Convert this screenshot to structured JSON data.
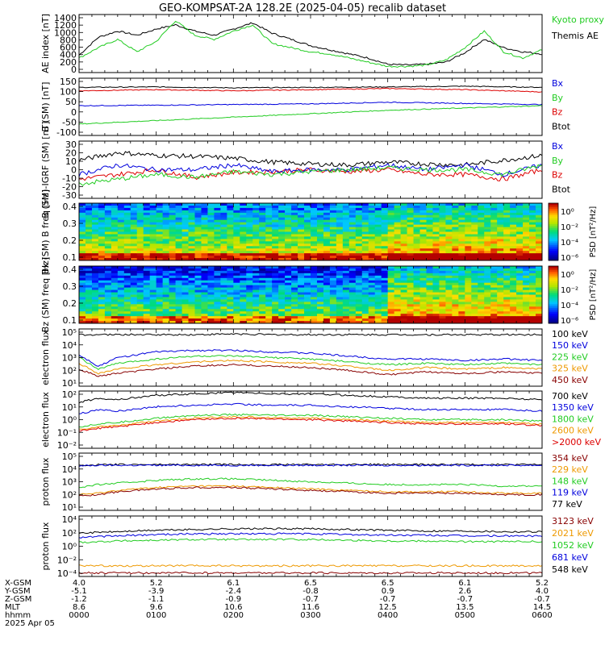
{
  "title": "GEO-KOMPSAT-2A 128.2E (2025-04-05) recalib dataset",
  "colors": {
    "black": "#000000",
    "blue": "#0000dd",
    "green": "#22cc22",
    "red": "#dd0000",
    "orange": "#ee9900",
    "darkred": "#880000",
    "bright_green": "#00ee00"
  },
  "chart_data": [
    {
      "type": "line",
      "id": "ae",
      "ylabel": "AE index [nT]",
      "yticks": [
        "1400",
        "1200",
        "1000",
        "800",
        "600",
        "400",
        "200",
        "0"
      ],
      "ylim": [
        0,
        1400
      ],
      "legend": [
        {
          "name": "Kyoto proxy AE",
          "color": "#22cc22"
        },
        {
          "name": "Themis AE",
          "color": "#000000"
        }
      ],
      "x": [
        0,
        15,
        30,
        45,
        60,
        75,
        90,
        105,
        120,
        135,
        150,
        165,
        180,
        195,
        210,
        225,
        240,
        255,
        270,
        285,
        300,
        315,
        330,
        345,
        360
      ],
      "series": [
        {
          "name": "Themis AE",
          "color": "#000000",
          "values": [
            420,
            850,
            1000,
            900,
            1050,
            1150,
            1000,
            900,
            1050,
            1200,
            950,
            800,
            650,
            550,
            450,
            350,
            200,
            180,
            200,
            250,
            480,
            800,
            600,
            500,
            450
          ]
        },
        {
          "name": "Kyoto proxy AE",
          "color": "#22cc22",
          "values": [
            350,
            600,
            800,
            500,
            750,
            1250,
            900,
            800,
            1000,
            1150,
            700,
            600,
            500,
            450,
            350,
            250,
            150,
            150,
            180,
            300,
            600,
            1000,
            500,
            350,
            550
          ]
        }
      ]
    },
    {
      "type": "line",
      "id": "b",
      "ylabel": "B (SM) [nT]",
      "yticks": [
        "150",
        "100",
        "50",
        "0",
        "-50",
        "-100"
      ],
      "ylim": [
        -100,
        150
      ],
      "legend": [
        {
          "name": "Bx",
          "color": "#0000dd"
        },
        {
          "name": "By",
          "color": "#22cc22"
        },
        {
          "name": "Bz",
          "color": "#dd0000"
        },
        {
          "name": "Btot",
          "color": "#000000"
        }
      ],
      "x": [
        0,
        60,
        120,
        180,
        240,
        300,
        360
      ],
      "series": [
        {
          "name": "Btot",
          "color": "#000000",
          "values": [
            110,
            112,
            108,
            110,
            112,
            115,
            110
          ]
        },
        {
          "name": "Bz",
          "color": "#dd0000",
          "values": [
            95,
            100,
            95,
            100,
            105,
            100,
            90
          ]
        },
        {
          "name": "Bx",
          "color": "#0000dd",
          "values": [
            30,
            32,
            35,
            38,
            45,
            40,
            35
          ]
        },
        {
          "name": "By",
          "color": "#22cc22",
          "values": [
            -50,
            -35,
            -20,
            -5,
            10,
            20,
            30
          ]
        }
      ]
    },
    {
      "type": "line",
      "id": "db",
      "ylabel": "B (SM)-IGRF (SM) [nT]",
      "yticks": [
        "30",
        "20",
        "10",
        "0",
        "-10",
        "-20",
        "-30"
      ],
      "ylim": [
        -30,
        30
      ],
      "legend": [
        {
          "name": "Bx",
          "color": "#0000dd"
        },
        {
          "name": "By",
          "color": "#22cc22"
        },
        {
          "name": "Bz",
          "color": "#dd0000"
        },
        {
          "name": "Btot",
          "color": "#000000"
        }
      ],
      "x": [
        0,
        30,
        60,
        90,
        120,
        150,
        180,
        210,
        240,
        270,
        300,
        330,
        360
      ],
      "series": [
        {
          "name": "Btot",
          "color": "#000000",
          "values": [
            10,
            18,
            15,
            14,
            12,
            8,
            6,
            5,
            8,
            6,
            5,
            10,
            15
          ]
        },
        {
          "name": "Bz",
          "color": "#dd0000",
          "values": [
            -10,
            -5,
            0,
            -8,
            -3,
            -2,
            0,
            -2,
            0,
            -5,
            -5,
            -10,
            0
          ]
        },
        {
          "name": "Bx",
          "color": "#0000dd",
          "values": [
            -5,
            5,
            0,
            0,
            5,
            -2,
            0,
            0,
            5,
            0,
            5,
            -5,
            5
          ]
        },
        {
          "name": "By",
          "color": "#22cc22",
          "values": [
            -15,
            -10,
            -5,
            -8,
            -2,
            -5,
            -2,
            0,
            2,
            0,
            0,
            -5,
            5
          ]
        }
      ]
    },
    {
      "type": "heatmap",
      "id": "bx_spec",
      "ylabel": "Bx (SM) B freq [Hz]",
      "yticks": [
        "0.4",
        "0.3",
        "0.2",
        "0.1"
      ],
      "ylim": [
        0.05,
        0.5
      ],
      "colorbar_label": "PSD [nT²/Hz]",
      "colorbar_ticks": [
        "10⁰",
        "10⁻²",
        "10⁻⁴",
        "10⁻⁶"
      ]
    },
    {
      "type": "heatmap",
      "id": "bz_spec",
      "ylabel": "Bz (SM) freq [Hz]",
      "yticks": [
        "0.4",
        "0.3",
        "0.2",
        "0.1"
      ],
      "ylim": [
        0.05,
        0.5
      ],
      "colorbar_label": "PSD [nT²/Hz]",
      "colorbar_ticks": [
        "10⁰",
        "10⁻²",
        "10⁻⁴",
        "10⁻⁶"
      ]
    },
    {
      "type": "line",
      "id": "eflux_low",
      "log": true,
      "ylabel": "electron flux",
      "yticks": [
        "10⁵",
        "10⁴",
        "10³",
        "10²",
        "10¹"
      ],
      "ylim_log": [
        1,
        5
      ],
      "legend": [
        {
          "name": "100 keV",
          "color": "#000000"
        },
        {
          "name": "150 keV",
          "color": "#0000dd"
        },
        {
          "name": "225 keV",
          "color": "#22cc22"
        },
        {
          "name": "325 keV",
          "color": "#ee9900"
        },
        {
          "name": "450 keV",
          "color": "#880000"
        }
      ],
      "x": [
        0,
        15,
        30,
        60,
        90,
        120,
        150,
        180,
        210,
        240,
        270,
        300,
        330,
        360
      ],
      "series": [
        {
          "values": [
            4.6,
            4.6,
            4.6,
            4.6,
            4.6,
            4.65,
            4.6,
            4.6,
            4.6,
            4.6,
            4.6,
            4.6,
            4.6,
            4.6
          ],
          "color": "#000000"
        },
        {
          "values": [
            3.2,
            2.4,
            3.0,
            3.4,
            3.5,
            3.5,
            3.4,
            3.3,
            3.1,
            2.9,
            2.9,
            2.8,
            2.9,
            2.8
          ],
          "color": "#0000dd"
        },
        {
          "values": [
            3.0,
            2.2,
            2.6,
            2.9,
            3.1,
            3.1,
            3.0,
            2.9,
            2.7,
            2.5,
            2.6,
            2.5,
            2.6,
            2.5
          ],
          "color": "#22cc22"
        },
        {
          "values": [
            2.6,
            1.9,
            2.2,
            2.5,
            2.7,
            2.8,
            2.7,
            2.6,
            2.4,
            2.1,
            2.3,
            2.2,
            2.3,
            2.2
          ],
          "color": "#ee9900"
        },
        {
          "values": [
            2.2,
            1.7,
            1.9,
            2.2,
            2.4,
            2.5,
            2.4,
            2.3,
            2.1,
            1.8,
            2.0,
            1.9,
            2.0,
            1.9
          ],
          "color": "#880000"
        }
      ]
    },
    {
      "type": "line",
      "id": "eflux_high",
      "log": true,
      "ylabel": "electron flux",
      "yticks": [
        "10²",
        "10¹",
        "10⁰",
        "10⁻¹",
        "10⁻²"
      ],
      "ylim_log": [
        -2,
        2
      ],
      "legend": [
        {
          "name": "700 keV",
          "color": "#000000"
        },
        {
          "name": "1350 keV",
          "color": "#0000dd"
        },
        {
          "name": "1800 keV",
          "color": "#22cc22"
        },
        {
          "name": "2600 keV",
          "color": "#ee9900"
        },
        {
          "name": ">2000 keV",
          "color": "#dd0000"
        }
      ],
      "x": [
        0,
        15,
        30,
        60,
        90,
        120,
        150,
        180,
        210,
        240,
        270,
        300,
        330,
        360
      ],
      "series": [
        {
          "values": [
            1.2,
            1.5,
            1.4,
            1.7,
            1.8,
            1.9,
            1.8,
            1.8,
            1.7,
            1.6,
            1.5,
            1.5,
            1.5,
            1.4
          ],
          "color": "#000000"
        },
        {
          "values": [
            0.4,
            0.7,
            0.6,
            0.9,
            1.0,
            1.1,
            1.0,
            1.0,
            0.9,
            0.8,
            0.7,
            0.7,
            0.7,
            0.6
          ],
          "color": "#0000dd"
        },
        {
          "values": [
            -0.5,
            -0.3,
            -0.2,
            0.1,
            0.3,
            0.35,
            0.3,
            0.3,
            0.2,
            0.1,
            0.0,
            0.0,
            0.0,
            -0.1
          ],
          "color": "#22cc22"
        },
        {
          "values": [
            -0.7,
            -0.5,
            -0.4,
            -0.1,
            0.1,
            0.2,
            0.15,
            0.1,
            0.0,
            -0.1,
            -0.2,
            -0.2,
            -0.2,
            -0.3
          ],
          "color": "#ee9900"
        },
        {
          "values": [
            -0.8,
            -0.6,
            -0.5,
            -0.2,
            0.0,
            0.1,
            0.05,
            0.0,
            -0.1,
            -0.2,
            -0.3,
            -0.3,
            -0.3,
            -0.4
          ],
          "color": "#dd0000"
        }
      ]
    },
    {
      "type": "line",
      "id": "pflux_low",
      "log": true,
      "ylabel": "proton flux",
      "yticks": [
        "10⁵",
        "10⁴",
        "10³",
        "10²",
        "10¹"
      ],
      "ylim_log": [
        1,
        5
      ],
      "legend": [
        {
          "name": "354 keV",
          "color": "#880000"
        },
        {
          "name": "229 keV",
          "color": "#ee9900"
        },
        {
          "name": "148 keV",
          "color": "#22cc22"
        },
        {
          "name": "119 keV",
          "color": "#0000dd"
        },
        {
          "name": "77 keV",
          "color": "#000000"
        }
      ],
      "x": [
        0,
        15,
        30,
        60,
        90,
        120,
        150,
        180,
        210,
        240,
        270,
        300,
        330,
        360
      ],
      "series": [
        {
          "values": [
            4.15,
            4.18,
            4.2,
            4.2,
            4.2,
            4.2,
            4.2,
            4.2,
            4.2,
            4.2,
            4.2,
            4.2,
            4.2,
            4.2
          ],
          "color": "#000000"
        },
        {
          "values": [
            4.1,
            4.15,
            4.15,
            4.15,
            4.15,
            4.15,
            4.15,
            4.15,
            4.15,
            4.15,
            4.15,
            4.15,
            4.15,
            4.15
          ],
          "color": "#0000dd"
        },
        {
          "values": [
            2.6,
            2.8,
            2.9,
            3.1,
            3.2,
            3.2,
            3.1,
            3.0,
            2.9,
            2.8,
            2.8,
            2.8,
            2.7,
            2.7
          ],
          "color": "#22cc22"
        },
        {
          "values": [
            2.1,
            2.2,
            2.4,
            2.6,
            2.7,
            2.7,
            2.6,
            2.5,
            2.4,
            2.3,
            2.3,
            2.3,
            2.2,
            2.2
          ],
          "color": "#ee9900"
        },
        {
          "values": [
            2.0,
            2.1,
            2.3,
            2.5,
            2.6,
            2.6,
            2.5,
            2.4,
            2.3,
            2.2,
            2.2,
            2.2,
            2.1,
            2.1
          ],
          "color": "#880000"
        }
      ]
    },
    {
      "type": "line",
      "id": "pflux_high",
      "log": true,
      "ylabel": "proton flux",
      "yticks": [
        "10⁴",
        "10²",
        "10⁰",
        "10⁻²",
        "10⁻⁴"
      ],
      "ylim_log": [
        -4.5,
        4
      ],
      "legend": [
        {
          "name": "3123 keV",
          "color": "#880000"
        },
        {
          "name": "2021 keV",
          "color": "#ee9900"
        },
        {
          "name": "1052 keV",
          "color": "#22cc22"
        },
        {
          "name": "681 keV",
          "color": "#0000dd"
        },
        {
          "name": "548 keV",
          "color": "#000000"
        }
      ],
      "x": [
        0,
        30,
        60,
        90,
        120,
        150,
        180,
        210,
        240,
        270,
        300,
        330,
        360
      ],
      "series": [
        {
          "values": [
            1.6,
            1.8,
            2.0,
            2.1,
            2.2,
            2.2,
            2.2,
            2.1,
            2.0,
            1.9,
            1.9,
            1.8,
            1.8
          ],
          "color": "#000000"
        },
        {
          "values": [
            1.0,
            1.2,
            1.4,
            1.5,
            1.5,
            1.5,
            1.5,
            1.4,
            1.3,
            1.3,
            1.2,
            1.2,
            1.2
          ],
          "color": "#0000dd"
        },
        {
          "values": [
            0.3,
            0.5,
            0.6,
            0.7,
            0.7,
            0.7,
            0.7,
            0.6,
            0.5,
            0.5,
            0.4,
            0.4,
            0.4
          ],
          "color": "#22cc22"
        },
        {
          "values": [
            -3.0,
            -3.0,
            -3.0,
            -3.0,
            -3.0,
            -3.0,
            -3.0,
            -3.0,
            -3.0,
            -3.0,
            -3.0,
            -3.0,
            -3.0
          ],
          "color": "#ee9900"
        },
        {
          "values": [
            -4.0,
            -4.0,
            -4.0,
            -4.0,
            -4.0,
            -4.0,
            -4.0,
            -4.0,
            -4.0,
            -4.0,
            -4.0,
            -4.0,
            -4.0
          ],
          "color": "#880000"
        }
      ]
    }
  ],
  "footer": {
    "rows": [
      {
        "label": "X-GSM",
        "values": [
          "4.0",
          "5.2",
          "6.1",
          "6.5",
          "6.5",
          "6.1",
          "5.2"
        ]
      },
      {
        "label": "Y-GSM",
        "values": [
          "-5.1",
          "-3.9",
          "-2.4",
          "-0.8",
          "0.9",
          "2.6",
          "4.0"
        ]
      },
      {
        "label": "Z-GSM",
        "values": [
          "-1.2",
          "-1.1",
          "-0.9",
          "-0.7",
          "-0.7",
          "-0.7",
          "-0.7"
        ]
      },
      {
        "label": "MLT",
        "values": [
          "8.6",
          "9.6",
          "10.6",
          "11.6",
          "12.5",
          "13.5",
          "14.5"
        ]
      },
      {
        "label": "hhmm",
        "values": [
          "0000",
          "0100",
          "0200",
          "0300",
          "0400",
          "0500",
          "0600"
        ]
      }
    ],
    "date": "2025 Apr 05"
  }
}
